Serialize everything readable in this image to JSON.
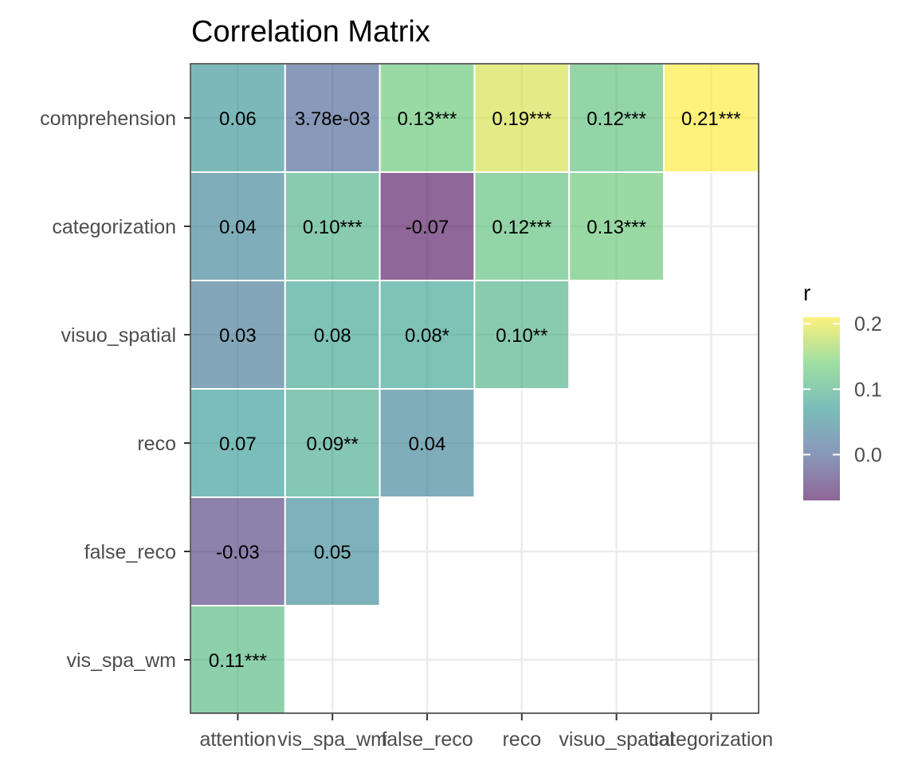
{
  "chart_data": {
    "type": "heatmap",
    "title": "Correlation Matrix",
    "x_categories": [
      "attention",
      "vis_spa_wm",
      "false_reco",
      "reco",
      "visuo_spatial",
      "categorization"
    ],
    "y_categories": [
      "comprehension",
      "categorization",
      "visuo_spatial",
      "reco",
      "false_reco",
      "vis_spa_wm"
    ],
    "cells": [
      {
        "x": "attention",
        "y": "comprehension",
        "r": 0.06,
        "label": "0.06"
      },
      {
        "x": "vis_spa_wm",
        "y": "comprehension",
        "r": 0.00378,
        "label": "3.78e-03"
      },
      {
        "x": "false_reco",
        "y": "comprehension",
        "r": 0.13,
        "label": "0.13***"
      },
      {
        "x": "reco",
        "y": "comprehension",
        "r": 0.19,
        "label": "0.19***"
      },
      {
        "x": "visuo_spatial",
        "y": "comprehension",
        "r": 0.12,
        "label": "0.12***"
      },
      {
        "x": "categorization",
        "y": "comprehension",
        "r": 0.21,
        "label": "0.21***"
      },
      {
        "x": "attention",
        "y": "categorization",
        "r": 0.04,
        "label": "0.04"
      },
      {
        "x": "vis_spa_wm",
        "y": "categorization",
        "r": 0.1,
        "label": "0.10***"
      },
      {
        "x": "false_reco",
        "y": "categorization",
        "r": -0.07,
        "label": "-0.07"
      },
      {
        "x": "reco",
        "y": "categorization",
        "r": 0.12,
        "label": "0.12***"
      },
      {
        "x": "visuo_spatial",
        "y": "categorization",
        "r": 0.13,
        "label": "0.13***"
      },
      {
        "x": "attention",
        "y": "visuo_spatial",
        "r": 0.03,
        "label": "0.03"
      },
      {
        "x": "vis_spa_wm",
        "y": "visuo_spatial",
        "r": 0.08,
        "label": "0.08"
      },
      {
        "x": "false_reco",
        "y": "visuo_spatial",
        "r": 0.08,
        "label": "0.08*"
      },
      {
        "x": "reco",
        "y": "visuo_spatial",
        "r": 0.1,
        "label": "0.10**"
      },
      {
        "x": "attention",
        "y": "reco",
        "r": 0.07,
        "label": "0.07"
      },
      {
        "x": "vis_spa_wm",
        "y": "reco",
        "r": 0.09,
        "label": "0.09**"
      },
      {
        "x": "false_reco",
        "y": "reco",
        "r": 0.04,
        "label": "0.04"
      },
      {
        "x": "attention",
        "y": "false_reco",
        "r": -0.03,
        "label": "-0.03"
      },
      {
        "x": "vis_spa_wm",
        "y": "false_reco",
        "r": 0.05,
        "label": "0.05"
      },
      {
        "x": "attention",
        "y": "vis_spa_wm",
        "r": 0.11,
        "label": "0.11***"
      }
    ],
    "legend": {
      "title": "r",
      "ticks": [
        0.2,
        0.1,
        0.0
      ],
      "tick_labels": [
        "0.2",
        "0.1",
        "0.0"
      ],
      "range": [
        -0.07,
        0.21
      ],
      "placement": "right"
    },
    "colors": {
      "scale": [
        "#440154",
        "#3b528b",
        "#21918c",
        "#5ec962",
        "#fde725"
      ],
      "fill_alpha": 0.6,
      "grid": "#ebebeb",
      "panel_border": "#333333",
      "cell_border": "#ffffff"
    },
    "grid": true
  }
}
